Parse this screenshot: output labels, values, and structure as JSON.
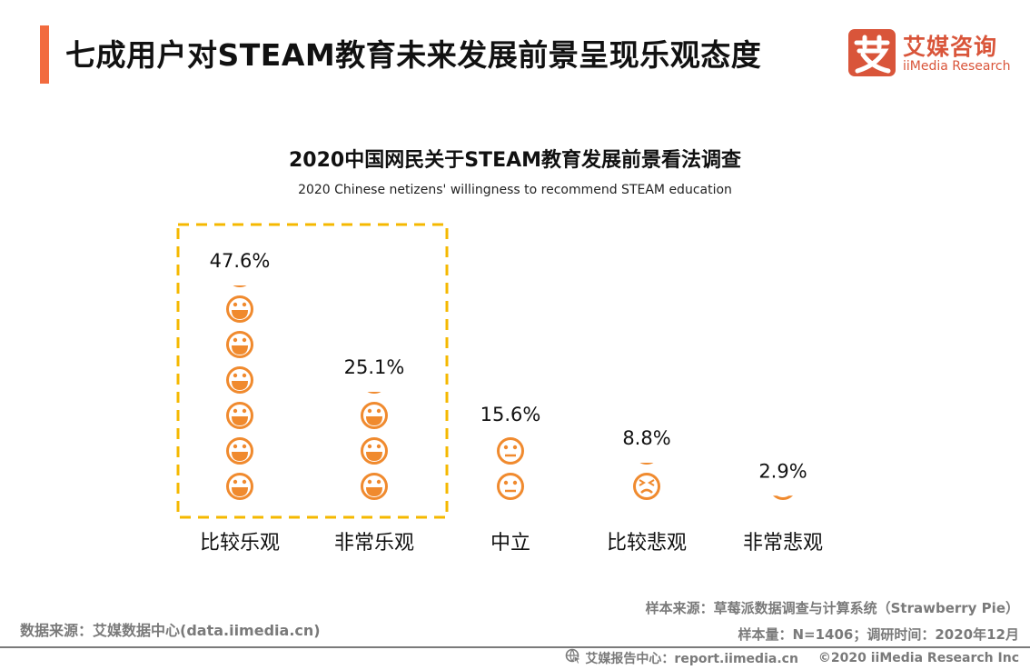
{
  "header": {
    "title": "七成用户对STEAM教育未来发展前景呈现乐观态度",
    "accent_color": "#f26b3f"
  },
  "logo": {
    "mark": "艾",
    "name_cn": "艾媒咨询",
    "name_en": "iiMedia Research",
    "color": "#d9553a"
  },
  "chart_data": {
    "type": "pictograph-bar",
    "title": "2020中国网民关于STEAM教育发展前景看法调查",
    "subtitle": "2020 Chinese netizens' willingness to recommend STEAM education",
    "categories": [
      "比较乐观",
      "非常乐观",
      "中立",
      "比较悲观",
      "非常悲观"
    ],
    "values": [
      47.6,
      25.1,
      15.6,
      8.8,
      2.9
    ],
    "value_labels": [
      "47.6%",
      "25.1%",
      "15.6%",
      "8.8%",
      "2.9%"
    ],
    "unit": "%",
    "icons": [
      "laughing-face",
      "laughing-face",
      "neutral-face",
      "frowning-face",
      "frowning-face"
    ],
    "units_per_icon": 7.8,
    "icon_color": "#f08a2e",
    "highlight": {
      "categories": [
        "比较乐观",
        "非常乐观"
      ],
      "style": "dashed-box",
      "color": "#f5b800"
    }
  },
  "sources": {
    "data_source": "数据来源：艾媒数据中心(data.iimedia.cn)",
    "sample_source": "样本来源：草莓派数据调查与计算系统（Strawberry Pie）",
    "sample_info": "样本量：N=1406；调研时间：2020年12月"
  },
  "footer": {
    "report_center": "艾媒报告中心：report.iimedia.cn",
    "copyright": "©2020  iiMedia Research  Inc"
  }
}
